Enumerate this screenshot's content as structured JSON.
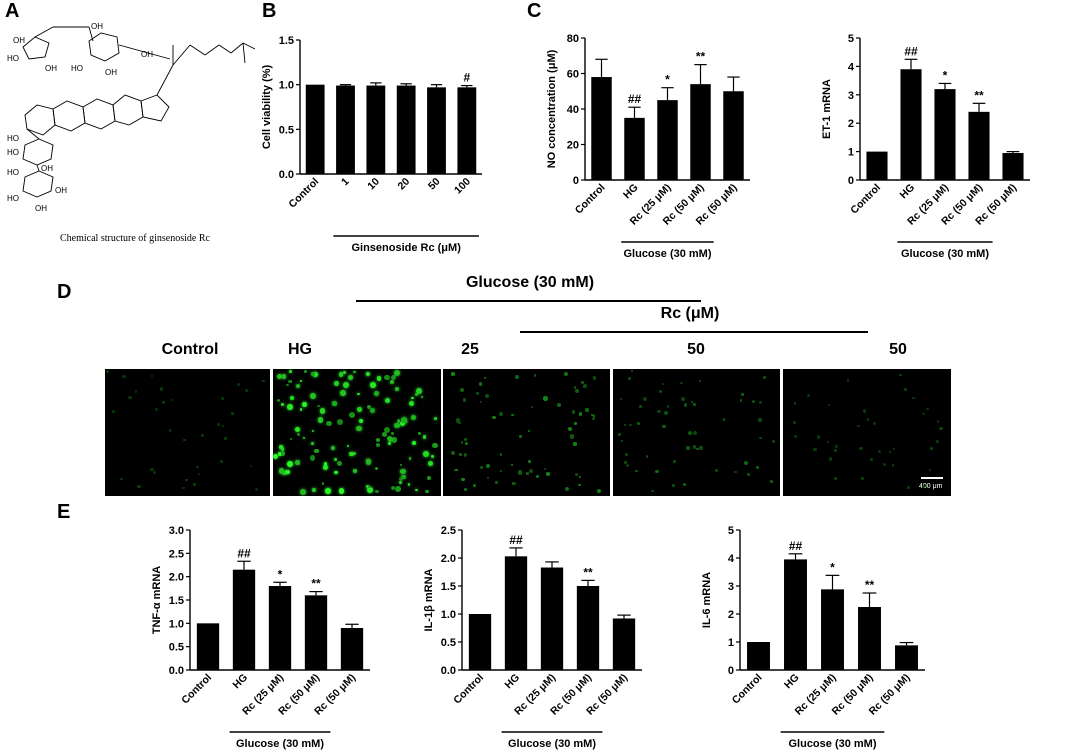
{
  "panels": {
    "a": "A",
    "b": "B",
    "c": "C",
    "d": "D",
    "e": "E"
  },
  "structure": {
    "caption": "Chemical structure of ginsenoside Rc",
    "labels": [
      "OH",
      "HO",
      "OH",
      "OH",
      "HO",
      "OH",
      "OH",
      "HO",
      "HO",
      "OH",
      "HO",
      "OH",
      "OH",
      "HO"
    ]
  },
  "micrographs": {
    "group_header": "Glucose (30 mM)",
    "rc_header": "Rc (μM)",
    "labels": [
      "Control",
      "HG",
      "25",
      "50",
      "50"
    ],
    "intensity": [
      0.12,
      1.0,
      0.45,
      0.3,
      0.15
    ],
    "scale_bar": "400 μm"
  },
  "chart_data": [
    {
      "id": "B",
      "type": "bar",
      "categories": [
        "Control",
        "1",
        "10",
        "20",
        "50",
        "100"
      ],
      "values": [
        1.0,
        0.99,
        0.99,
        0.99,
        0.97,
        0.97
      ],
      "errors": [
        0.0,
        0.01,
        0.03,
        0.02,
        0.03,
        0.02
      ],
      "annotations": [
        "",
        "",
        "",
        "",
        "",
        "#"
      ],
      "ylabel": "Cell viability (%)",
      "ylim": [
        0.0,
        1.5
      ],
      "yticks": [
        "0.0",
        "0.5",
        "1.0",
        "1.5"
      ],
      "group_label": "Ginsenoside Rc (μM)",
      "group_span": [
        1,
        5
      ]
    },
    {
      "id": "C1",
      "type": "bar",
      "categories": [
        "Control",
        "HG",
        "Rc (25 μM)",
        "Rc (50 μM)",
        "Rc (50 μM)"
      ],
      "values": [
        58,
        35,
        45,
        54,
        50
      ],
      "errors": [
        10,
        6,
        7,
        11,
        8
      ],
      "annotations": [
        "",
        "##",
        "*",
        "**",
        ""
      ],
      "ylabel": "NO concentration (μM)",
      "ylim": [
        0,
        80
      ],
      "yticks": [
        "0",
        "20",
        "40",
        "60",
        "80"
      ],
      "group_label": "Glucose (30 mM)",
      "group_span": [
        1,
        3
      ]
    },
    {
      "id": "C2",
      "type": "bar",
      "categories": [
        "Control",
        "HG",
        "Rc (25 μM)",
        "Rc (50 μM)",
        "Rc (50 μM)"
      ],
      "values": [
        1.0,
        3.9,
        3.2,
        2.4,
        0.95
      ],
      "errors": [
        0.0,
        0.35,
        0.2,
        0.3,
        0.05
      ],
      "annotations": [
        "",
        "##",
        "*",
        "**",
        ""
      ],
      "ylabel": "ET-1 mRNA",
      "ylim": [
        0,
        5
      ],
      "yticks": [
        "0",
        "1",
        "2",
        "3",
        "4",
        "5"
      ],
      "group_label": "Glucose (30 mM)",
      "group_span": [
        1,
        3
      ]
    },
    {
      "id": "E1",
      "type": "bar",
      "categories": [
        "Control",
        "HG",
        "Rc (25 μM)",
        "Rc (50 μM)",
        "Rc (50 μM)"
      ],
      "values": [
        1.0,
        2.15,
        1.8,
        1.6,
        0.9
      ],
      "errors": [
        0.0,
        0.18,
        0.08,
        0.08,
        0.08
      ],
      "annotations": [
        "",
        "##",
        "*",
        "**",
        ""
      ],
      "ylabel": "TNF-α mRNA",
      "ylim": [
        0.0,
        3.0
      ],
      "yticks": [
        "0.0",
        "0.5",
        "1.0",
        "1.5",
        "2.0",
        "2.5",
        "3.0"
      ],
      "group_label": "Glucose (30 mM)",
      "group_span": [
        1,
        3
      ]
    },
    {
      "id": "E2",
      "type": "bar",
      "categories": [
        "Control",
        "HG",
        "Rc (25 μM)",
        "Rc (50 μM)",
        "Rc (50 μM)"
      ],
      "values": [
        1.0,
        2.03,
        1.83,
        1.5,
        0.92
      ],
      "errors": [
        0.0,
        0.15,
        0.1,
        0.1,
        0.06
      ],
      "annotations": [
        "",
        "##",
        "",
        "**",
        ""
      ],
      "ylabel": "IL-1β mRNA",
      "ylim": [
        0.0,
        2.5
      ],
      "yticks": [
        "0.0",
        "0.5",
        "1.0",
        "1.5",
        "2.0",
        "2.5"
      ],
      "group_label": "Glucose (30 mM)",
      "group_span": [
        1,
        3
      ]
    },
    {
      "id": "E3",
      "type": "bar",
      "categories": [
        "Control",
        "HG",
        "Rc (25 μM)",
        "Rc (50 μM)",
        "Rc (50 μM)"
      ],
      "values": [
        1.0,
        3.95,
        2.88,
        2.25,
        0.88
      ],
      "errors": [
        0.0,
        0.2,
        0.5,
        0.5,
        0.1
      ],
      "annotations": [
        "",
        "##",
        "*",
        "**",
        ""
      ],
      "ylabel": "IL-6 mRNA",
      "ylim": [
        0,
        5
      ],
      "yticks": [
        "0",
        "1",
        "2",
        "3",
        "4",
        "5"
      ],
      "group_label": "Glucose (30 mM)",
      "group_span": [
        1,
        3
      ]
    }
  ]
}
